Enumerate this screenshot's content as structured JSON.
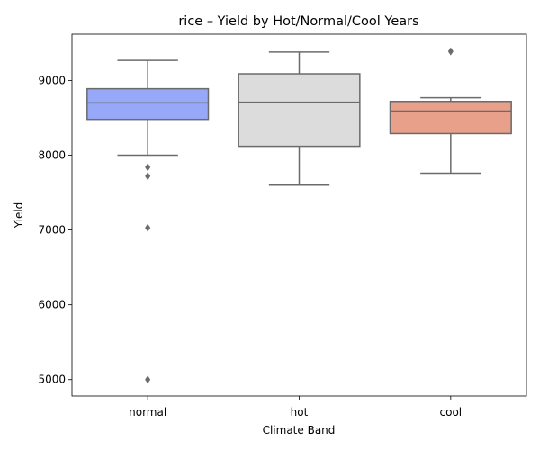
{
  "chart_data": {
    "type": "box",
    "title": "rice – Yield by Hot/Normal/Cool Years",
    "xlabel": "Climate Band",
    "ylabel": "Yield",
    "ylim": [
      4780,
      9620
    ],
    "yticks": [
      5000,
      6000,
      7000,
      8000,
      9000
    ],
    "grid": false,
    "legend": "none",
    "categories": [
      "normal",
      "hot",
      "cool"
    ],
    "boxes": [
      {
        "category": "normal",
        "color": "#98a8f8",
        "whisker_low": 8000,
        "q1": 8480,
        "median": 8700,
        "q3": 8890,
        "whisker_high": 9270,
        "outliers": [
          7840,
          7720,
          7030,
          5000
        ]
      },
      {
        "category": "hot",
        "color": "#dcdcdc",
        "whisker_low": 7600,
        "q1": 8120,
        "median": 8710,
        "q3": 9090,
        "whisker_high": 9380,
        "outliers": []
      },
      {
        "category": "cool",
        "color": "#e8a08a",
        "whisker_low": 7760,
        "q1": 8290,
        "median": 8590,
        "q3": 8720,
        "whisker_high": 8770,
        "outliers": [
          9390
        ]
      }
    ]
  }
}
